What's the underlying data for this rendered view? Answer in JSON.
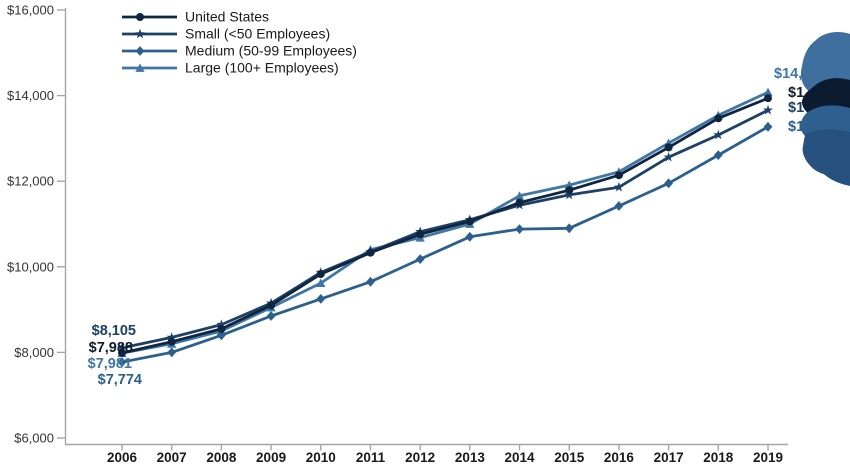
{
  "chart_data": {
    "type": "line",
    "x": [
      2006,
      2007,
      2008,
      2009,
      2010,
      2011,
      2012,
      2013,
      2014,
      2015,
      2016,
      2017,
      2018,
      2019
    ],
    "ylim": [
      6000,
      16000
    ],
    "ytick_step": 2000,
    "ytick_labels": [
      "$6,000",
      "$8,000",
      "$10,000",
      "$12,000",
      "$14,000",
      "$16,000"
    ],
    "xlabel": "",
    "ylabel": "",
    "grid": false,
    "legend_position": "top-left",
    "series": [
      {
        "name": "United States",
        "marker": "circle",
        "color": "#102640",
        "values": [
          7988,
          8250,
          8550,
          9100,
          9830,
          10330,
          10760,
          11060,
          11500,
          11790,
          12140,
          12790,
          13470,
          13940
        ],
        "start_label": "$7,988",
        "end_label_visible": "$1"
      },
      {
        "name": "Small (<50 Employees)",
        "marker": "star",
        "color": "#1d4067",
        "values": [
          8105,
          8350,
          8650,
          9150,
          9870,
          10350,
          10820,
          11100,
          11440,
          11680,
          11860,
          12560,
          13080,
          13660
        ],
        "start_label": "$8,105",
        "end_label_visible": "$1"
      },
      {
        "name": "Medium (50-99 Employees)",
        "marker": "diamond",
        "color": "#2c5f8e",
        "values": [
          7774,
          8000,
          8400,
          8850,
          9250,
          9650,
          10180,
          10700,
          10880,
          10900,
          11420,
          11950,
          12610,
          13270
        ],
        "start_label": "$7,774",
        "end_label_visible": "$1"
      },
      {
        "name": "Large (100+ Employees)",
        "marker": "triangle",
        "color": "#3f76a6",
        "values": [
          7981,
          8200,
          8500,
          9050,
          9620,
          10400,
          10680,
          11000,
          11660,
          11910,
          12220,
          12890,
          13540,
          14080
        ],
        "start_label": "$7,981",
        "end_label_visible": "$14,"
      }
    ],
    "axis_color": "#a6a6a6",
    "tick_label_color": "#333333",
    "year_label_color": "#1a1a1a"
  },
  "artifact_blob": {
    "description": "irregular multi-blue blob covering right edge of end labels",
    "colors": [
      "#3e6f9e",
      "#0c1c30",
      "#2d5f8f",
      "#27517f"
    ]
  }
}
